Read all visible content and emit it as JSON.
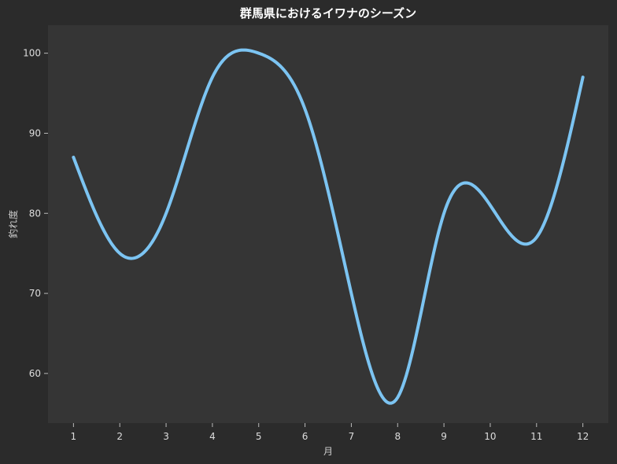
{
  "chart_data": {
    "type": "line",
    "title": "群馬県におけるイワナのシーズン",
    "xlabel": "月",
    "ylabel": "釣れ度",
    "x": [
      1,
      2,
      3,
      4,
      5,
      6,
      7,
      8,
      9,
      10,
      11,
      12
    ],
    "x_tick_labels": [
      "1",
      "2",
      "3",
      "4",
      "5",
      "6",
      "7",
      "8",
      "9",
      "10",
      "11",
      "12"
    ],
    "y_ticks": [
      60,
      70,
      80,
      90,
      100
    ],
    "y_tick_labels": [
      "60",
      "70",
      "80",
      "90",
      "100"
    ],
    "series": [
      {
        "values": [
          87,
          75,
          80,
          97,
          100,
          93,
          70,
          57,
          80,
          81,
          77,
          97
        ]
      }
    ],
    "xlim": [
      0.45,
      12.55
    ],
    "ylim": [
      53.8,
      103.5
    ],
    "grid": false,
    "colors": {
      "figure_background": "#2b2b2b",
      "plot_background": "#353535",
      "line": "#7cc4f2"
    }
  }
}
